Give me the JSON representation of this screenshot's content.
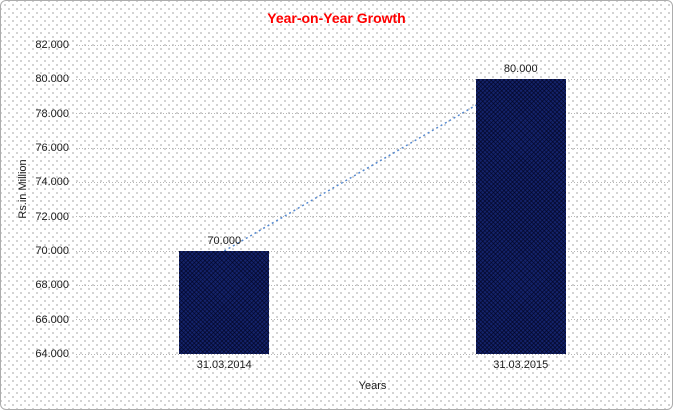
{
  "chart_data": {
    "type": "bar",
    "title": "Year-on-Year Growth",
    "title_color": "#ff0000",
    "categories": [
      "31.03.2014",
      "31.03.2015"
    ],
    "values": [
      70000,
      80000
    ],
    "value_labels": [
      "70.000",
      "80.000"
    ],
    "xlabel": "Years",
    "ylabel": "Rs.in Million",
    "ylim": [
      64000,
      82000
    ],
    "ytick_step": 2000,
    "ytick_labels": [
      "64.000",
      "66.000",
      "68.000",
      "70.000",
      "72.000",
      "74.000",
      "76.000",
      "78.000",
      "80.000",
      "82.000"
    ],
    "grid": "horizontal-dotted",
    "legend": "none",
    "colors": {
      "bar": "#14236b",
      "trendline": "#5589d0",
      "gridline": "#b5b5b5",
      "tick_text": "#1a1a1a",
      "frame_border": "#adadad"
    },
    "trendline": {
      "style": "dotted",
      "from_category": "31.03.2014",
      "from_value": 70000,
      "to_category": "31.03.2015",
      "to_value": 80000
    }
  }
}
